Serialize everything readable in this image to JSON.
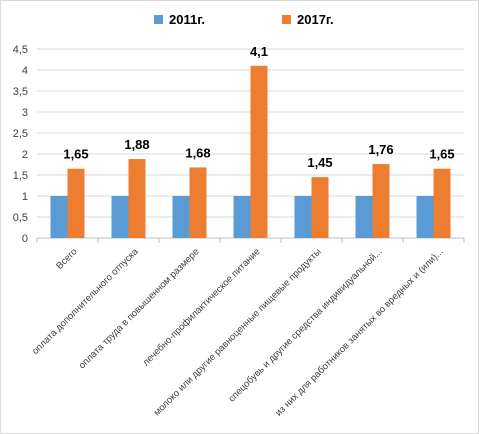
{
  "chart_data": {
    "type": "bar",
    "categories": [
      "Всего",
      "оплата дополнительного отпуска",
      "оплата труда в повышенном размере",
      "лечебно-профилактическое питание",
      "молоко или другие равноценные пищевые продукты",
      "спецобувь и другие средства индивидуальной...",
      "из них для работников занятых во вредных и (или)..."
    ],
    "series": [
      {
        "name": "2011г.",
        "color": "#5b9bd5",
        "values": [
          1,
          1,
          1,
          1,
          1,
          1,
          1
        ]
      },
      {
        "name": "2017г.",
        "color": "#ed7d31",
        "values": [
          1.65,
          1.88,
          1.68,
          4.1,
          1.45,
          1.76,
          1.65
        ]
      }
    ],
    "data_labels": [
      "1,65",
      "1,88",
      "1,68",
      "4,1",
      "1,45",
      "1,76",
      "1,65"
    ],
    "y_ticks": [
      "0",
      "0,5",
      "1",
      "1,5",
      "2",
      "2,5",
      "3",
      "3,5",
      "4",
      "4,5"
    ],
    "ylim": [
      0,
      4.5
    ],
    "grid": true,
    "legend_position": "top"
  }
}
